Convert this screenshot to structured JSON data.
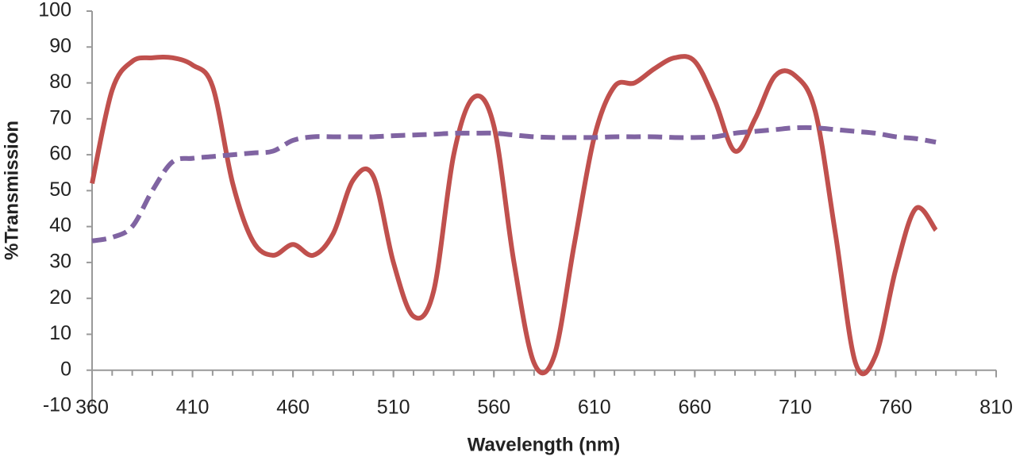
{
  "chart_data": {
    "type": "line",
    "x_label": "Wavelength (nm)",
    "y_label": "%Transmission",
    "x": [
      360,
      370,
      380,
      390,
      400,
      410,
      420,
      430,
      440,
      450,
      460,
      470,
      480,
      490,
      500,
      510,
      520,
      530,
      540,
      550,
      560,
      570,
      580,
      590,
      600,
      610,
      620,
      630,
      640,
      650,
      660,
      670,
      680,
      690,
      700,
      710,
      720,
      730,
      740,
      750,
      760,
      770,
      780
    ],
    "series": [
      {
        "color": "#c0504d",
        "dashed": false,
        "values": [
          52,
          78,
          86,
          87,
          87,
          85,
          79,
          52,
          36,
          32,
          35,
          32,
          38,
          53,
          54,
          30,
          15,
          22,
          60,
          76,
          68,
          30,
          2,
          4,
          35,
          65,
          79,
          80,
          84,
          87,
          86,
          75,
          61,
          70,
          82,
          82,
          72,
          38,
          2,
          4,
          28,
          45,
          39
        ]
      },
      {
        "color": "#8064a2",
        "dashed": true,
        "values": [
          36,
          37,
          40,
          50,
          58,
          59,
          59.5,
          60,
          60.5,
          61,
          64,
          65,
          65,
          65,
          65,
          65.3,
          65.5,
          65.7,
          66,
          66,
          66,
          65.5,
          65,
          64.8,
          64.8,
          64.8,
          65,
          65,
          65,
          64.8,
          64.8,
          65,
          66,
          66.5,
          67,
          67.5,
          67.5,
          67,
          66.5,
          66,
          65,
          64.5,
          63.5
        ]
      }
    ],
    "xlim": [
      360,
      810
    ],
    "xticks": [
      360,
      410,
      460,
      510,
      560,
      610,
      660,
      710,
      760,
      810
    ],
    "ylim": [
      -10,
      100
    ],
    "yticks": [
      -10,
      0,
      10,
      20,
      30,
      40,
      50,
      60,
      70,
      80,
      90,
      100
    ],
    "grid": false
  }
}
